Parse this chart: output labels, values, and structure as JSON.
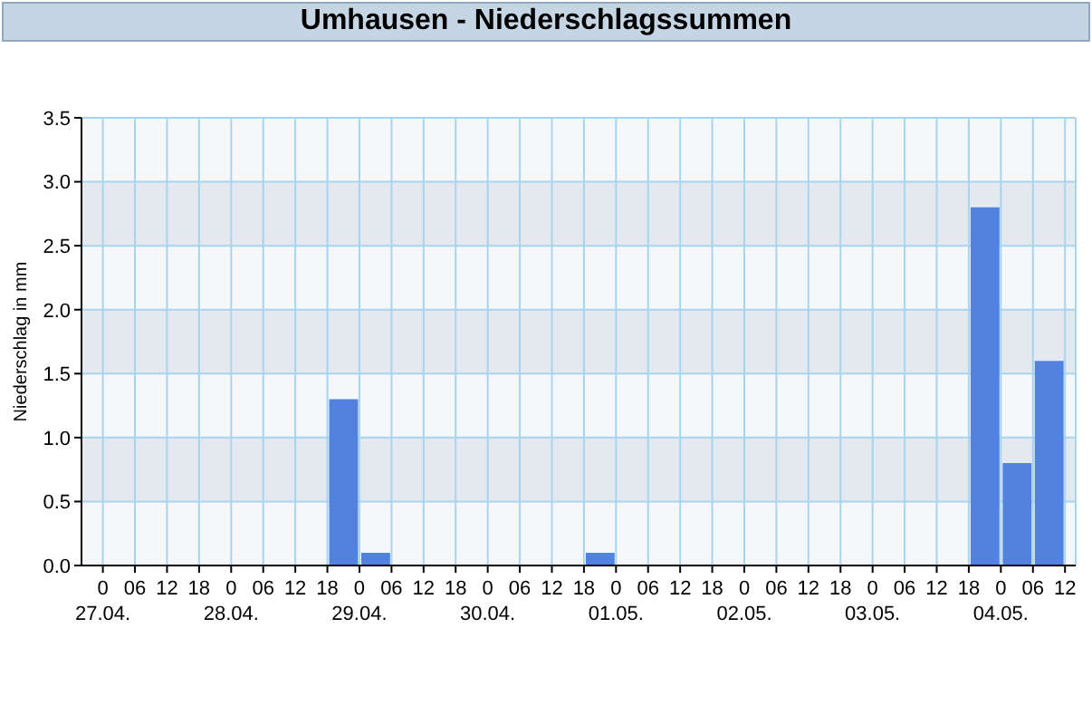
{
  "chart_data": {
    "type": "histogram",
    "title": "Umhausen - Niederschlagssummen",
    "ylabel": "Niederschlag in mm",
    "bins": [
      "--04-27T00:00",
      "--04-27T06:00",
      "--04-27T12:00",
      "--04-27T18:00",
      "--04-28T00:00",
      "--04-28T06:00",
      "--04-28T12:00",
      "--04-28T18:00",
      "--04-29T00:00",
      "--04-29T06:00",
      "--04-29T12:00",
      "--04-29T18:00",
      "--04-30T00:00",
      "--04-30T06:00",
      "--04-30T12:00",
      "--04-30T18:00",
      "--05-01T00:00",
      "--05-01T06:00",
      "--05-01T12:00",
      "--05-01T18:00",
      "--05-02T00:00",
      "--05-02T06:00",
      "--05-02T12:00",
      "--05-02T18:00",
      "--05-03T00:00",
      "--05-03T06:00",
      "--05-03T12:00",
      "--05-03T18:00",
      "--05-04T00:00",
      "--05-04T06:00",
      "--05-04T12:00"
    ],
    "values": [
      0,
      0,
      0,
      0,
      0,
      0,
      0,
      1.3,
      0.1,
      0,
      0,
      0,
      0,
      0,
      0,
      0.1,
      0,
      0,
      0,
      0,
      0,
      0,
      0,
      0,
      0,
      0,
      0,
      2.8,
      0.8,
      1.6
    ],
    "color": "#5282e0",
    "xlim": [
      "--04-26T20:00",
      "--05-04T14:00"
    ],
    "xticks": [
      {
        "value": "--04-27T00:00",
        "label": "0\n27.04."
      },
      {
        "value": "--04-27T06:00",
        "label": "06"
      },
      {
        "value": "--04-27T12:00",
        "label": "12"
      },
      {
        "value": "--04-27T18:00",
        "label": "18"
      },
      {
        "value": "--04-28T00:00",
        "label": "0\n28.04."
      },
      {
        "value": "--04-28T06:00",
        "label": "06"
      },
      {
        "value": "--04-28T12:00",
        "label": "12"
      },
      {
        "value": "--04-28T18:00",
        "label": "18"
      },
      {
        "value": "--04-29T00:00",
        "label": "0\n29.04."
      },
      {
        "value": "--04-29T06:00",
        "label": "06"
      },
      {
        "value": "--04-29T12:00",
        "label": "12"
      },
      {
        "value": "--04-29T18:00",
        "label": "18"
      },
      {
        "value": "--04-30T00:00",
        "label": "0\n30.04."
      },
      {
        "value": "--04-30T06:00",
        "label": "06"
      },
      {
        "value": "--04-30T12:00",
        "label": "12"
      },
      {
        "value": "--04-30T18:00",
        "label": "18"
      },
      {
        "value": "--05-01T00:00",
        "label": "0\n01.05."
      },
      {
        "value": "--05-01T06:00",
        "label": "06"
      },
      {
        "value": "--05-01T12:00",
        "label": "12"
      },
      {
        "value": "--05-01T18:00",
        "label": "18"
      },
      {
        "value": "--05-02T00:00",
        "label": "0\n02.05."
      },
      {
        "value": "--05-02T06:00",
        "label": "06"
      },
      {
        "value": "--05-02T12:00",
        "label": "12"
      },
      {
        "value": "--05-02T18:00",
        "label": "18"
      },
      {
        "value": "--05-03T00:00",
        "label": "0\n03.05."
      },
      {
        "value": "--05-03T06:00",
        "label": "06"
      },
      {
        "value": "--05-03T12:00",
        "label": "12"
      },
      {
        "value": "--05-03T18:00",
        "label": "18"
      },
      {
        "value": "--05-04T00:00",
        "label": "0\n04.05."
      },
      {
        "value": "--05-04T06:00",
        "label": "06"
      },
      {
        "value": "--05-04T12:00",
        "label": "12"
      }
    ],
    "ylim": [
      0,
      3.5
    ],
    "yticks": [
      {
        "value": 0,
        "label": "0.0"
      },
      {
        "value": 0.5,
        "label": "0.5"
      },
      {
        "value": 1,
        "label": "1.0"
      },
      {
        "value": 1.5,
        "label": "1.5"
      },
      {
        "value": 2,
        "label": "2.0"
      },
      {
        "value": 2.5,
        "label": "2.5"
      },
      {
        "value": 3,
        "label": "3.0"
      },
      {
        "value": 3.5,
        "label": "3.5"
      }
    ],
    "grid": true
  }
}
